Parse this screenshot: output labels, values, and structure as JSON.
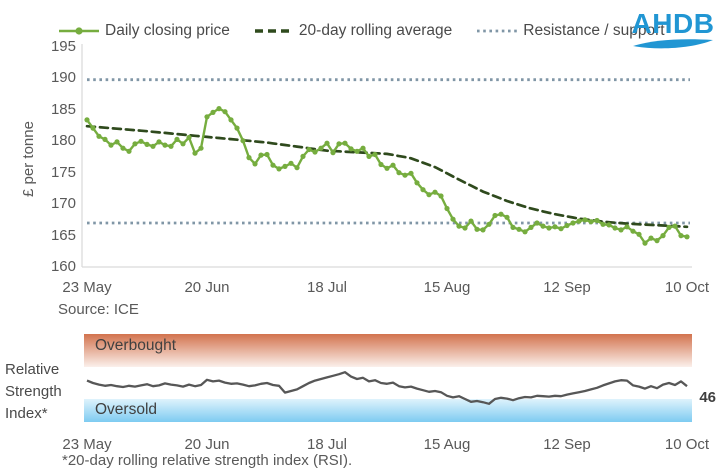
{
  "logo": {
    "text": "AHDB",
    "color": "#2196D3"
  },
  "colors": {
    "daily_line": "#76AD3F",
    "rolling_avg_line": "#2F4A1D",
    "resistance_support_line": "#8096A6",
    "rsi_line": "#575757",
    "overbought_band_top": "#D2734E",
    "overbought_band_bottom": "#FBF0EB",
    "oversold_band_top": "#DFF3FC",
    "oversold_band_bottom": "#7ECBF1",
    "axis": "#D9D9D9",
    "logo_blue": "#2196D3"
  },
  "chart_data": [
    {
      "type": "line",
      "ylabel": "£ per tonne",
      "ylim": [
        160,
        195
      ],
      "yticks": [
        195,
        190,
        185,
        180,
        175,
        170,
        165,
        160
      ],
      "xticklabels": [
        "23 May",
        "20 Jun",
        "18 Jul",
        "15 Aug",
        "12 Sep",
        "10 Oct"
      ],
      "source": "Source: ICE",
      "legend_position": "top",
      "grid": false,
      "series": [
        {
          "name": "Daily closing price",
          "style": "solid-markers",
          "color": "#76AD3F",
          "values": [
            183.4,
            182.1,
            180.8,
            180.3,
            179.4,
            179.9,
            178.9,
            178.4,
            179.6,
            180.0,
            179.5,
            179.2,
            179.9,
            179.4,
            179.2,
            180.3,
            179.6,
            180.6,
            178.1,
            178.9,
            183.9,
            184.6,
            185.2,
            184.7,
            183.4,
            182.1,
            180.1,
            177.4,
            176.4,
            177.8,
            177.9,
            176.2,
            175.6,
            176.0,
            176.5,
            175.8,
            177.6,
            178.7,
            178.3,
            178.9,
            179.7,
            178.2,
            179.6,
            179.7,
            178.8,
            178.4,
            178.9,
            177.6,
            177.9,
            176.3,
            175.7,
            176.2,
            175.0,
            174.6,
            174.9,
            173.4,
            172.3,
            171.5,
            171.9,
            171.3,
            169.3,
            167.6,
            166.5,
            166.2,
            167.3,
            166.0,
            165.9,
            166.8,
            168.2,
            168.4,
            167.9,
            166.3,
            166.0,
            165.6,
            166.3,
            167.0,
            166.5,
            166.2,
            166.4,
            166.1,
            166.6,
            167.0,
            167.3,
            167.5,
            167.2,
            167.4,
            166.8,
            166.7,
            166.2,
            165.9,
            166.4,
            165.7,
            165.2,
            163.8,
            164.6,
            164.2,
            165.0,
            166.3,
            166.5,
            165.0,
            164.8
          ]
        },
        {
          "name": "20-day rolling average",
          "style": "dashed",
          "color": "#2F4A1D",
          "values": [
            182.4,
            182.32,
            182.24,
            182.16,
            182.08,
            182.0,
            181.92,
            181.84,
            181.76,
            181.68,
            181.6,
            181.51,
            181.42,
            181.33,
            181.24,
            181.15,
            181.06,
            180.97,
            180.88,
            180.79,
            180.7,
            180.61,
            180.52,
            180.43,
            180.34,
            180.25,
            180.16,
            180.07,
            179.98,
            179.89,
            179.8,
            179.67,
            179.54,
            179.41,
            179.28,
            179.15,
            179.02,
            178.89,
            178.76,
            178.63,
            178.5,
            178.45,
            178.4,
            178.35,
            178.3,
            178.25,
            178.2,
            178.15,
            178.1,
            178.05,
            178.0,
            177.83,
            177.65,
            177.48,
            177.3,
            176.95,
            176.6,
            176.25,
            175.9,
            175.4,
            174.9,
            174.4,
            173.9,
            173.43,
            172.95,
            172.48,
            172.0,
            171.63,
            171.25,
            170.88,
            170.5,
            170.2,
            169.9,
            169.6,
            169.3,
            169.08,
            168.85,
            168.63,
            168.4,
            168.23,
            168.05,
            167.88,
            167.7,
            167.58,
            167.45,
            167.33,
            167.2,
            167.13,
            167.05,
            166.98,
            166.9,
            166.85,
            166.8,
            166.75,
            166.7,
            166.65,
            166.6,
            166.55,
            166.5,
            166.45,
            166.4
          ]
        },
        {
          "name": "Resistance / support",
          "style": "dotted",
          "color": "#8096A6",
          "levels": [
            189.8,
            167.0
          ]
        }
      ]
    },
    {
      "type": "line",
      "name": "rsi-panel",
      "side_label": "Relative Strength Index*",
      "bands": [
        {
          "label": "Overbought",
          "from": 70,
          "to": 100
        },
        {
          "label": "Oversold",
          "from": 0,
          "to": 30
        }
      ],
      "last_value": "46",
      "xticklabels": [
        "23 May",
        "20 Jun",
        "18 Jul",
        "15 Aug",
        "12 Sep",
        "10 Oct"
      ],
      "footnote": "*20-day rolling relative strength index (RSI).",
      "series": [
        {
          "name": "20-day rolling RSI",
          "style": "solid",
          "color": "#575757",
          "values": [
            53,
            50,
            48,
            46.5,
            47.5,
            46,
            45,
            46.5,
            45.5,
            47,
            48.5,
            46,
            47,
            49.5,
            48,
            47,
            45.5,
            48,
            46,
            47.5,
            54,
            52,
            53,
            50.5,
            49,
            49.5,
            48,
            46,
            47,
            49,
            50,
            47.5,
            46.5,
            38,
            40,
            42,
            46,
            50,
            53,
            55,
            57,
            59,
            61,
            63.5,
            58,
            55,
            56.5,
            52,
            53.5,
            50,
            49,
            50.5,
            46,
            44.5,
            45.5,
            43,
            41,
            39,
            40,
            38.5,
            34,
            32,
            33.5,
            30,
            26.5,
            27.5,
            26,
            24,
            30,
            31.5,
            30.5,
            28.5,
            31,
            32.5,
            32,
            34,
            33.5,
            33,
            34,
            33.5,
            35.5,
            37,
            38.5,
            40,
            42,
            44,
            47,
            49.5,
            52,
            53.5,
            53,
            47,
            45.5,
            43,
            46,
            43.5,
            48,
            50,
            47.5,
            52,
            46
          ]
        }
      ]
    }
  ]
}
